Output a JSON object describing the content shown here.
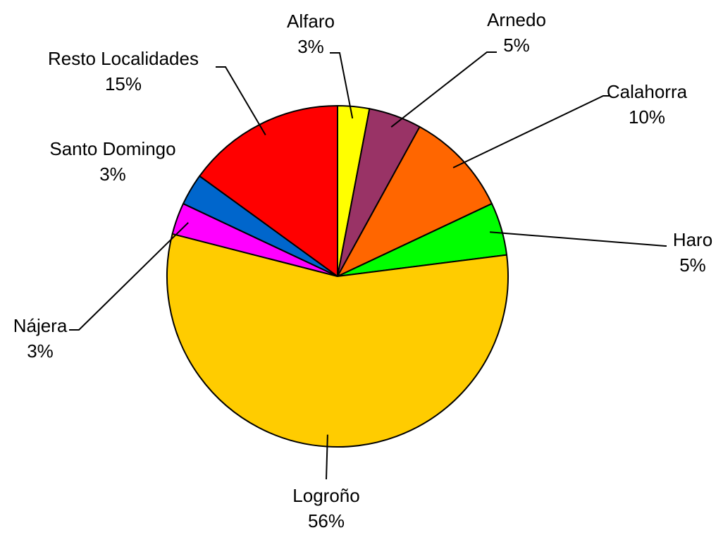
{
  "chart_data": {
    "type": "pie",
    "title": "",
    "start_angle_deg": 0,
    "direction": "clockwise",
    "legend": "none",
    "slices": [
      {
        "name": "Alfaro",
        "value": 3,
        "label": "3%",
        "color": "#FFFF00"
      },
      {
        "name": "Arnedo",
        "value": 5,
        "label": "5%",
        "color": "#993366"
      },
      {
        "name": "Calahorra",
        "value": 10,
        "label": "10%",
        "color": "#FF6600"
      },
      {
        "name": "Haro",
        "value": 5,
        "label": "5%",
        "color": "#00FF00"
      },
      {
        "name": "Logroño",
        "value": 56,
        "label": "56%",
        "color": "#FFCC00"
      },
      {
        "name": "Nájera",
        "value": 3,
        "label": "3%",
        "color": "#FF00FF"
      },
      {
        "name": "Santo Domingo",
        "value": 3,
        "label": "3%",
        "color": "#0066CC"
      },
      {
        "name": "Resto Localidades",
        "value": 15,
        "label": "15%",
        "color": "#FF0000"
      }
    ]
  }
}
